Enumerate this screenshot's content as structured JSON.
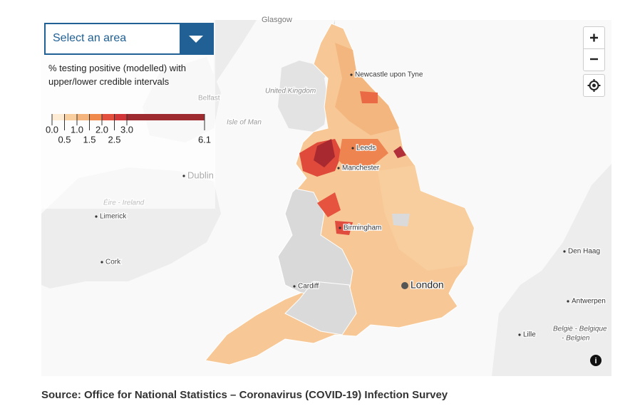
{
  "dropdown": {
    "placeholder": "Select an area"
  },
  "legend": {
    "title": "% testing positive (modelled) with upper/lower credible intervals",
    "ticks": [
      "0.0",
      "0.5",
      "1.0",
      "1.5",
      "2.0",
      "2.5",
      "3.0",
      "6.1"
    ]
  },
  "places": [
    {
      "name": "Glasgow"
    },
    {
      "name": "Newcastle upon Tyne"
    },
    {
      "name": "United Kingdom"
    },
    {
      "name": "Belfast"
    },
    {
      "name": "Isle of Man"
    },
    {
      "name": "Leeds"
    },
    {
      "name": "Manchester"
    },
    {
      "name": "Dublin"
    },
    {
      "name": "Éire - Ireland"
    },
    {
      "name": "Limerick"
    },
    {
      "name": "Birmingham"
    },
    {
      "name": "Cork"
    },
    {
      "name": "Cardiff"
    },
    {
      "name": "London"
    },
    {
      "name": "Den Haag"
    },
    {
      "name": "Antwerpen"
    },
    {
      "name": "Lille"
    },
    {
      "name": "België - Belgique"
    },
    {
      "name": "- Belgien"
    }
  ],
  "source": "Source: Office for National Statistics – Coronavirus (COVID-19) Infection Survey"
}
